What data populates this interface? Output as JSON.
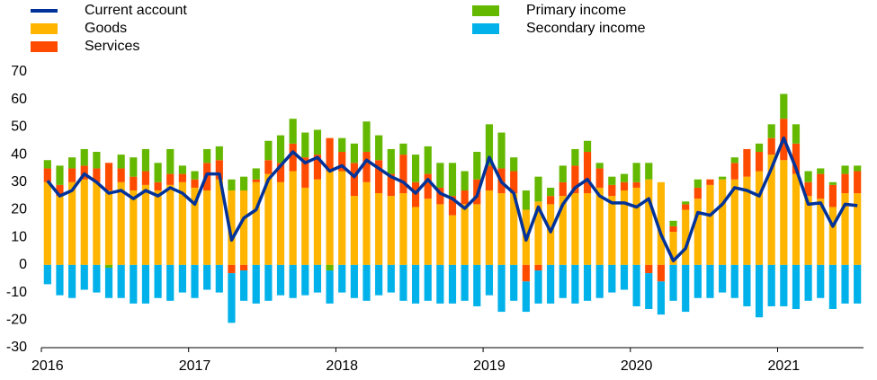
{
  "chart_data": {
    "type": "bar",
    "stacked": true,
    "categories": [
      "2016",
      null,
      null,
      null,
      null,
      null,
      null,
      null,
      null,
      null,
      null,
      null,
      "2017",
      null,
      null,
      null,
      null,
      null,
      null,
      null,
      null,
      null,
      null,
      null,
      "2018",
      null,
      null,
      null,
      null,
      null,
      null,
      null,
      null,
      null,
      null,
      null,
      "2019",
      null,
      null,
      null,
      null,
      null,
      null,
      null,
      null,
      null,
      null,
      null,
      "2020",
      null,
      null,
      null,
      null,
      null,
      null,
      null,
      null,
      null,
      null,
      null,
      "2021",
      null,
      null,
      null,
      null,
      null,
      null
    ],
    "series": [
      {
        "name": "Current account",
        "type": "line",
        "color": "#003299",
        "values": [
          30.5,
          25,
          27,
          33,
          30,
          26,
          27,
          24,
          27,
          25,
          28,
          26,
          22,
          33,
          33,
          9,
          17,
          20,
          31,
          36,
          41,
          37,
          39,
          34,
          36,
          32,
          38,
          35,
          32,
          30,
          26,
          31,
          26,
          24,
          20.5,
          25,
          39,
          30,
          26,
          9,
          21,
          12,
          22,
          28,
          31,
          25,
          22.5,
          22.5,
          21,
          24,
          11,
          1.5,
          6,
          19,
          18,
          22,
          28,
          27,
          25,
          35,
          46,
          35,
          22,
          22.5,
          14,
          22,
          21.5
        ]
      },
      {
        "name": "Goods",
        "color": "#ffb400",
        "values": [
          30,
          25,
          30,
          31,
          30,
          27,
          30,
          27,
          29,
          27,
          29,
          30,
          28,
          27,
          31,
          27,
          27,
          30,
          33,
          30,
          34,
          28,
          31,
          34,
          34,
          25,
          30,
          26,
          25,
          26,
          21,
          24,
          22,
          18,
          22,
          22,
          27,
          26,
          26,
          20,
          23,
          22,
          25,
          26,
          26,
          28,
          25,
          27,
          28,
          31,
          30,
          12,
          20,
          24,
          29,
          31,
          31,
          32,
          34,
          40,
          38,
          33,
          25,
          24,
          21,
          26,
          26
        ]
      },
      {
        "name": "Services",
        "color": "#ff4b00",
        "values": [
          5,
          4,
          5,
          5,
          5,
          10,
          5,
          5,
          5,
          3,
          4,
          3,
          3,
          10,
          7,
          -3,
          -2,
          1,
          5,
          7,
          10,
          11,
          9,
          12,
          7,
          12,
          11,
          12,
          8,
          14,
          9,
          9,
          6,
          7,
          5,
          9,
          9,
          9,
          8,
          -6,
          -2,
          3,
          5,
          10,
          15,
          7,
          4,
          3,
          2,
          -3,
          -6,
          2,
          2,
          4,
          2,
          0,
          6,
          10,
          7,
          6,
          15,
          11,
          5,
          9,
          8,
          7,
          8
        ]
      },
      {
        "name": "Primary income",
        "color": "#65b800",
        "values": [
          3,
          7,
          4,
          6,
          6,
          -1,
          5,
          7,
          8,
          7,
          9,
          3,
          3,
          5,
          5,
          4,
          5,
          4,
          7,
          10,
          9,
          9,
          9,
          -2,
          5,
          7,
          11,
          9,
          9,
          4,
          10,
          10,
          9,
          12,
          7,
          10,
          15,
          13,
          5,
          7,
          9,
          3,
          6,
          6,
          4,
          2,
          3,
          3,
          7,
          6,
          0,
          2,
          1,
          3,
          0,
          1,
          2,
          0,
          3,
          5,
          9,
          7,
          4,
          2,
          1,
          3,
          2
        ]
      },
      {
        "name": "Secondary income",
        "color": "#00b1ea",
        "values": [
          -7,
          -11,
          -12,
          -9,
          -10,
          -11,
          -12,
          -14,
          -14,
          -12,
          -13,
          -10,
          -12,
          -9,
          -10,
          -18,
          -11,
          -14,
          -13,
          -11,
          -12,
          -11,
          -10,
          -12,
          -10,
          -12,
          -13,
          -11,
          -10,
          -13,
          -14,
          -13,
          -14,
          -14,
          -13,
          -15,
          -11,
          -17,
          -13,
          -11,
          -12,
          -14,
          -12,
          -14,
          -13,
          -12,
          -10,
          -9,
          -15,
          -13,
          -12,
          -13,
          -17,
          -12,
          -12,
          -10,
          -12,
          -15,
          -19,
          -15,
          -15,
          -16,
          -13,
          -12,
          -16,
          -14,
          -14
        ]
      }
    ],
    "ylim": [
      -30,
      70
    ],
    "yticks": [
      -30,
      -20,
      -10,
      0,
      10,
      20,
      30,
      40,
      50,
      60,
      70
    ],
    "grid": false
  }
}
